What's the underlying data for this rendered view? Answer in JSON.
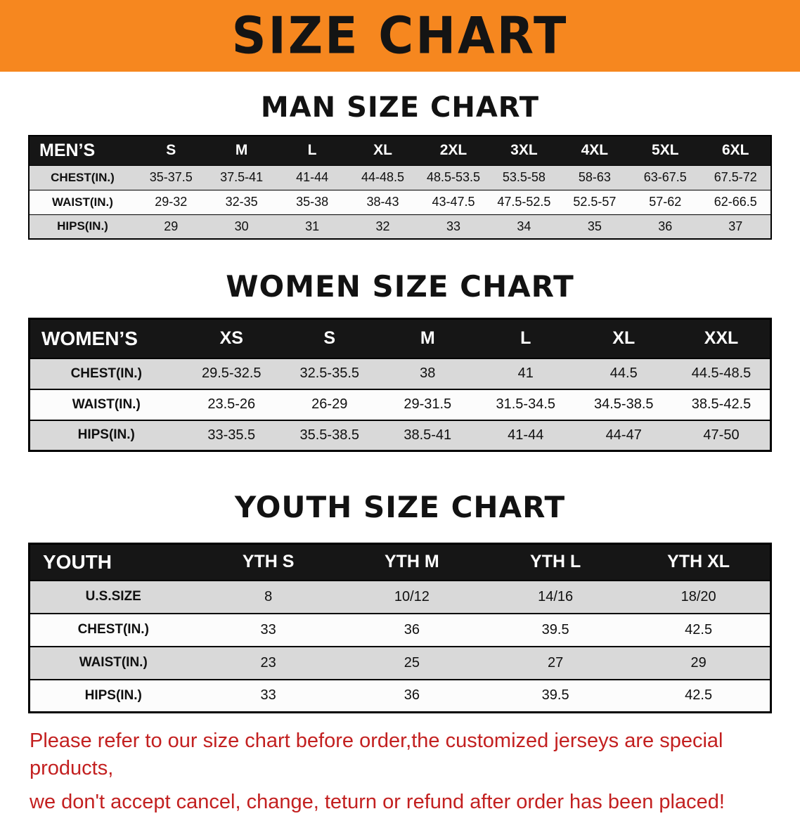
{
  "banner": {
    "title": "SIZE CHART",
    "background": "#f6871f",
    "text_color": "#141414"
  },
  "sections": [
    {
      "id": "men",
      "heading": "MAN SIZE CHART",
      "table": {
        "header": [
          "MEN’S",
          "S",
          "M",
          "L",
          "XL",
          "2XL",
          "3XL",
          "4XL",
          "5XL",
          "6XL"
        ],
        "rows": [
          [
            "CHEST(IN.)",
            "35-37.5",
            "37.5-41",
            "41-44",
            "44-48.5",
            "48.5-53.5",
            "53.5-58",
            "58-63",
            "63-67.5",
            "67.5-72"
          ],
          [
            "WAIST(IN.)",
            "29-32",
            "32-35",
            "35-38",
            "38-43",
            "43-47.5",
            "47.5-52.5",
            "52.5-57",
            "57-62",
            "62-66.5"
          ],
          [
            "HIPS(IN.)",
            "29",
            "30",
            "31",
            "32",
            "33",
            "34",
            "35",
            "36",
            "37"
          ]
        ]
      }
    },
    {
      "id": "women",
      "heading": "WOMEN SIZE CHART",
      "table": {
        "header": [
          "WOMEN’S",
          "XS",
          "S",
          "M",
          "L",
          "XL",
          "XXL"
        ],
        "rows": [
          [
            "CHEST(IN.)",
            "29.5-32.5",
            "32.5-35.5",
            "38",
            "41",
            "44.5",
            "44.5-48.5"
          ],
          [
            "WAIST(IN.)",
            "23.5-26",
            "26-29",
            "29-31.5",
            "31.5-34.5",
            "34.5-38.5",
            "38.5-42.5"
          ],
          [
            "HIPS(IN.)",
            "33-35.5",
            "35.5-38.5",
            "38.5-41",
            "41-44",
            "44-47",
            "47-50"
          ]
        ]
      }
    },
    {
      "id": "youth",
      "heading": "YOUTH SIZE CHART",
      "table": {
        "header": [
          "YOUTH",
          "YTH S",
          "YTH M",
          "YTH L",
          "YTH XL"
        ],
        "rows": [
          [
            "U.S.SIZE",
            "8",
            "10/12",
            "14/16",
            "18/20"
          ],
          [
            "CHEST(IN.)",
            "33",
            "36",
            "39.5",
            "42.5"
          ],
          [
            "WAIST(IN.)",
            "23",
            "25",
            "27",
            "29"
          ],
          [
            "HIPS(IN.)",
            "33",
            "36",
            "39.5",
            "42.5"
          ]
        ]
      }
    }
  ],
  "footer": {
    "lines": [
      "Please refer to our size chart before order,the customized jerseys are special products,",
      "we don't accept cancel, change, teturn or refund after order has been placed!"
    ],
    "color": "#c32020"
  },
  "colors": {
    "header_row_bg": "#161616",
    "header_row_text": "#ffffff",
    "shaded_row_bg": "#d9d9d9",
    "plain_row_bg": "#fcfcfc"
  }
}
